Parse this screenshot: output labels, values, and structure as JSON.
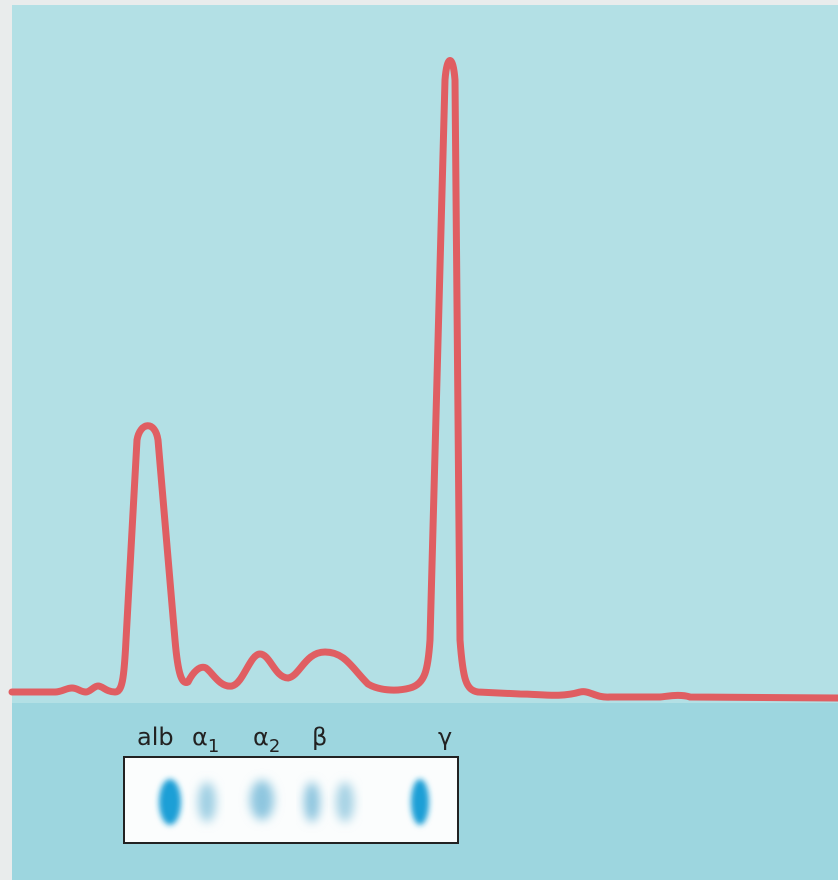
{
  "labels": [
    {
      "text": "alb"
    },
    {
      "symbol": "α",
      "subscript": "1"
    },
    {
      "symbol": "α",
      "subscript": "2"
    },
    {
      "symbol": "β"
    },
    {
      "symbol": "γ"
    }
  ]
}
